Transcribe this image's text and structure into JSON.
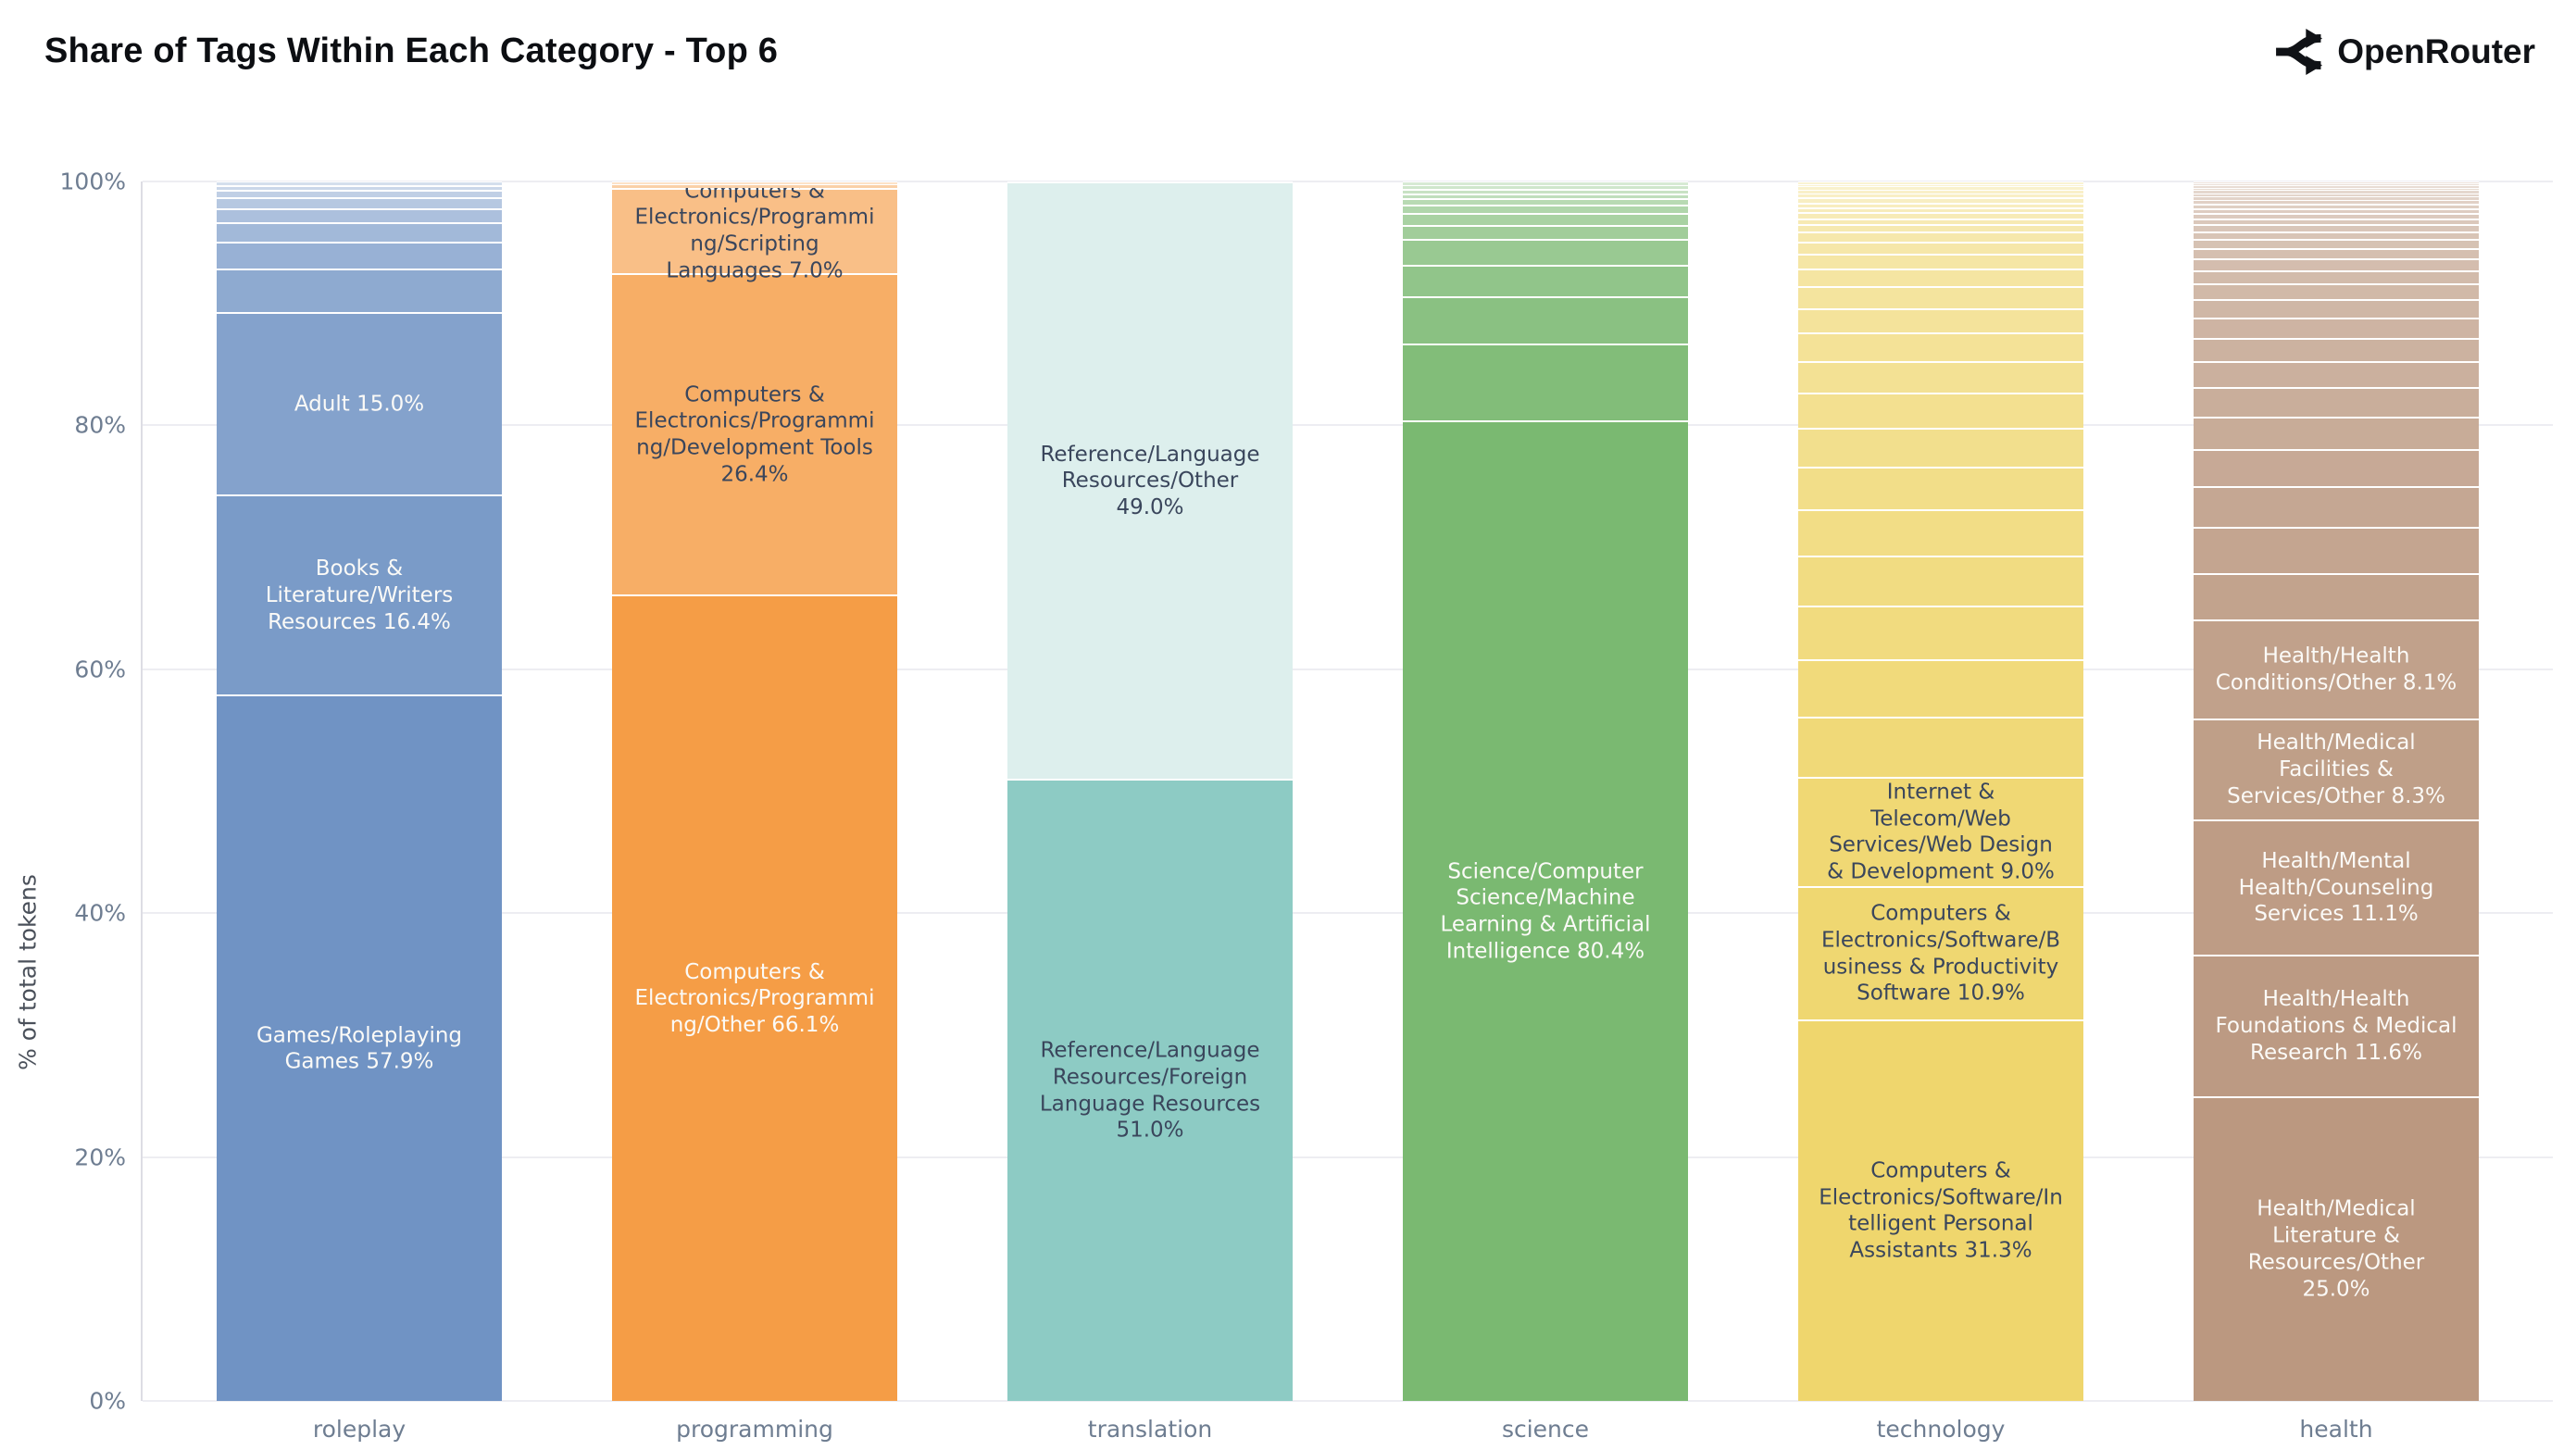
{
  "header": {
    "title": "Share of Tags Within Each Category - Top 6",
    "brand": "OpenRouter",
    "brand_color": "#101216"
  },
  "chart_data": {
    "type": "bar",
    "stacked": true,
    "title": "Share of Tags Within Each Category - Top 6",
    "xlabel": "",
    "ylabel": "% of total tokens",
    "ylim": [
      0,
      100
    ],
    "yticks": [
      "0%",
      "20%",
      "40%",
      "60%",
      "80%",
      "100%"
    ],
    "grid": true,
    "legend": false,
    "colors": {
      "grid": "#ededf2",
      "axis_text": "#6e7d91",
      "label_dark": "#3a465c",
      "label_light": "#fbfaf7",
      "fade_to": "#ffffff"
    },
    "categories": [
      "roleplay",
      "programming",
      "translation",
      "science",
      "technology",
      "health"
    ],
    "bars": [
      {
        "category": "roleplay",
        "base_color": "#7093C4",
        "segments": [
          {
            "tag": "Games/Roleplaying Games",
            "value": 57.9,
            "label": "Games/Roleplaying Games 57.9%",
            "label_color": "light"
          },
          {
            "tag": "Books & Literature/Writers Resources",
            "value": 16.4,
            "label": "Books & Literature/Writers Resources 16.4%",
            "label_color": "light"
          },
          {
            "tag": "Adult",
            "value": 15.0,
            "label": "Adult 15.0%",
            "label_color": "light"
          },
          {
            "value": 3.6
          },
          {
            "value": 2.2
          },
          {
            "value": 1.6
          },
          {
            "value": 1.1
          },
          {
            "value": 0.9
          },
          {
            "value": 0.6
          },
          {
            "value": 0.4
          },
          {
            "value": 0.3
          }
        ]
      },
      {
        "category": "programming",
        "base_color": "#F59D46",
        "segments": [
          {
            "tag": "Computers & Electronics/Programming/Other",
            "value": 66.1,
            "label": "Computers & Electronics/Programming/Other 66.1%",
            "label_color": "light"
          },
          {
            "tag": "Computers & Electronics/Programming/Development Tools",
            "value": 26.4,
            "label": "Computers & Electronics/Programming/Development Tools 26.4%",
            "label_color": "dark"
          },
          {
            "tag": "Computers & Electronics/Programming/Scripting Languages",
            "value": 7.0,
            "label": "Computers & Electronics/Programming/Scripting Languages 7.0%",
            "label_color": "dark"
          },
          {
            "value": 0.3
          },
          {
            "value": 0.2
          }
        ]
      },
      {
        "category": "translation",
        "base_color": "#8DCBC4",
        "segments": [
          {
            "tag": "Reference/Language Resources/Foreign Language Resources",
            "value": 51.0,
            "label": "Reference/Language Resources/Foreign Language Resources 51.0%",
            "label_color": "dark"
          },
          {
            "tag": "Reference/Language Resources/Other",
            "value": 49.0,
            "label": "Reference/Language Resources/Other 49.0%",
            "label_color": "dark"
          }
        ]
      },
      {
        "category": "science",
        "base_color": "#7AB971",
        "segments": [
          {
            "tag": "Science/Computer Science/Machine Learning & Artificial Intelligence",
            "value": 80.4,
            "label": "Science/Computer Science/Machine Learning & Artificial Intelligence 80.4%",
            "label_color": "light"
          },
          {
            "value": 6.3
          },
          {
            "value": 3.9
          },
          {
            "value": 2.6
          },
          {
            "value": 2.1
          },
          {
            "value": 1.1
          },
          {
            "value": 1.0
          },
          {
            "value": 0.7
          },
          {
            "value": 0.5
          },
          {
            "value": 0.4
          },
          {
            "value": 0.4
          },
          {
            "value": 0.3
          },
          {
            "value": 0.3
          }
        ]
      },
      {
        "category": "technology",
        "base_color": "#EFD66D",
        "segments": [
          {
            "tag": "Computers & Electronics/Software/Intelligent Personal Assistants",
            "value": 31.3,
            "label": "Computers & Electronics/Software/Intelligent Personal Assistants 31.3%",
            "label_color": "dark"
          },
          {
            "tag": "Computers & Electronics/Software/Business & Productivity Software",
            "value": 10.9,
            "label": "Computers & Electronics/Software/Business & Productivity Software 10.9%",
            "label_color": "dark"
          },
          {
            "tag": "Internet & Telecom/Web Services/Web Design & Development",
            "value": 9.0,
            "label": "Internet & Telecom/Web Services/Web Design & Development 9.0%",
            "label_color": "dark"
          },
          {
            "value": 4.9
          },
          {
            "value": 4.7
          },
          {
            "value": 4.4
          },
          {
            "value": 4.1
          },
          {
            "value": 3.8
          },
          {
            "value": 3.5
          },
          {
            "value": 3.2
          },
          {
            "value": 2.9
          },
          {
            "value": 2.6
          },
          {
            "value": 2.3
          },
          {
            "value": 2.0
          },
          {
            "value": 1.8
          },
          {
            "value": 1.5
          },
          {
            "value": 1.2
          },
          {
            "value": 1.0
          },
          {
            "value": 0.8
          },
          {
            "value": 0.6
          },
          {
            "value": 0.5
          },
          {
            "value": 0.5
          },
          {
            "value": 0.4
          },
          {
            "value": 0.4
          },
          {
            "value": 0.4
          },
          {
            "value": 0.3
          },
          {
            "value": 0.3
          },
          {
            "value": 0.3
          },
          {
            "value": 0.2
          },
          {
            "value": 0.2
          }
        ]
      },
      {
        "category": "health",
        "base_color": "#BB9880",
        "segments": [
          {
            "tag": "Health/Medical Literature & Resources/Other",
            "value": 25.0,
            "label": "Health/Medical Literature & Resources/Other 25.0%",
            "label_color": "light"
          },
          {
            "tag": "Health/Health Foundations & Medical Research",
            "value": 11.6,
            "label": "Health/Health Foundations & Medical Research 11.6%",
            "label_color": "light"
          },
          {
            "tag": "Health/Mental Health/Counseling Services",
            "value": 11.1,
            "label": "Health/Mental Health/Counseling Services 11.1%",
            "label_color": "light"
          },
          {
            "tag": "Health/Medical Facilities & Services/Other",
            "value": 8.3,
            "label": "Health/Medical Facilities & Services/Other 8.3%",
            "label_color": "light"
          },
          {
            "tag": "Health/Health Conditions/Other",
            "value": 8.1,
            "label": "Health/Health Conditions/Other 8.1%",
            "label_color": "light"
          },
          {
            "value": 3.8
          },
          {
            "value": 3.75
          },
          {
            "value": 3.4
          },
          {
            "value": 3.0
          },
          {
            "value": 2.7
          },
          {
            "value": 2.4
          },
          {
            "value": 2.1
          },
          {
            "value": 1.9
          },
          {
            "value": 1.7
          },
          {
            "value": 1.5
          },
          {
            "value": 1.3
          },
          {
            "value": 1.1
          },
          {
            "value": 0.95
          },
          {
            "value": 0.85
          },
          {
            "value": 0.75
          },
          {
            "value": 0.65
          },
          {
            "value": 0.55
          },
          {
            "value": 0.5
          },
          {
            "value": 0.45
          },
          {
            "value": 0.4
          },
          {
            "value": 0.35
          },
          {
            "value": 0.3
          },
          {
            "value": 0.3
          },
          {
            "value": 0.25
          },
          {
            "value": 0.25
          },
          {
            "value": 0.2
          },
          {
            "value": 0.2
          },
          {
            "value": 0.15
          },
          {
            "value": 0.15
          }
        ]
      }
    ]
  }
}
